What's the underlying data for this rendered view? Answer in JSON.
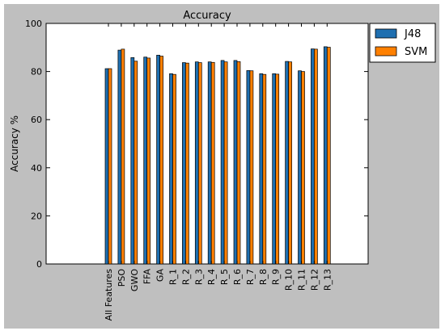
{
  "chart_data": {
    "type": "bar",
    "title": "Accuracy",
    "xlabel": "",
    "ylabel": "Accuracy  %",
    "ylim": [
      0,
      100
    ],
    "yticks": [
      "0",
      "20",
      "40",
      "60",
      "80",
      "100"
    ],
    "grid": false,
    "legend_position": "outside top-right",
    "categories": [
      "All Features",
      "PSO",
      "GWO",
      "FFA",
      "GA",
      "R_1",
      "R_2",
      "R_3",
      "R_4",
      "R_5",
      "R_6",
      "R_7",
      "R_8",
      "R_9",
      "R_10",
      "R_11",
      "R_12",
      "R_13"
    ],
    "series": [
      {
        "name": "J48",
        "color": "#1f6fb0",
        "values": [
          81.2,
          88.9,
          85.8,
          86.0,
          86.8,
          79.1,
          83.7,
          84.0,
          84.0,
          84.6,
          84.6,
          80.4,
          79.1,
          79.1,
          84.2,
          80.3,
          89.4,
          90.3
        ]
      },
      {
        "name": "SVM",
        "color": "#ff8000",
        "values": [
          81.2,
          89.3,
          84.3,
          85.6,
          86.4,
          78.8,
          83.5,
          83.7,
          83.8,
          84.0,
          84.1,
          80.3,
          78.8,
          78.9,
          84.0,
          80.0,
          89.3,
          90.1
        ]
      }
    ]
  }
}
